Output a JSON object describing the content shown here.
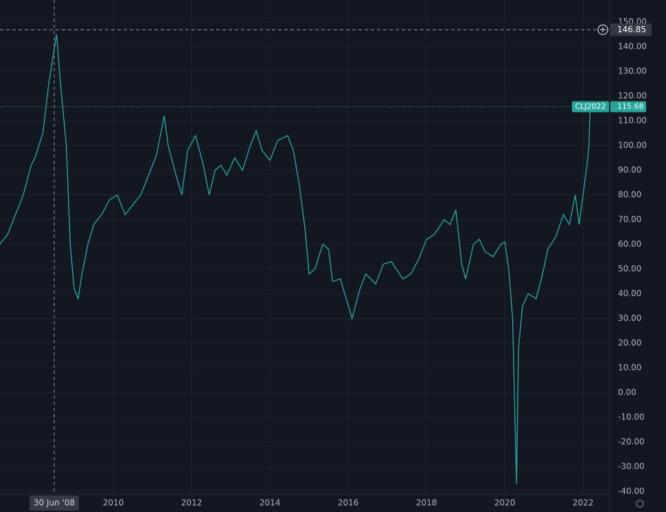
{
  "chart_data": {
    "type": "line",
    "x": [
      2007.1,
      2007.3,
      2007.5,
      2007.7,
      2007.9,
      2008.0,
      2008.2,
      2008.35,
      2008.5,
      2008.55,
      2008.65,
      2008.8,
      2008.9,
      2009.0,
      2009.1,
      2009.2,
      2009.35,
      2009.5,
      2009.7,
      2009.9,
      2010.1,
      2010.3,
      2010.5,
      2010.7,
      2010.9,
      2011.1,
      2011.3,
      2011.4,
      2011.6,
      2011.75,
      2011.9,
      2012.1,
      2012.3,
      2012.45,
      2012.6,
      2012.75,
      2012.9,
      2013.1,
      2013.3,
      2013.5,
      2013.65,
      2013.8,
      2014.0,
      2014.2,
      2014.45,
      2014.6,
      2014.75,
      2014.9,
      2015.0,
      2015.15,
      2015.35,
      2015.5,
      2015.6,
      2015.8,
      2015.95,
      2016.1,
      2016.3,
      2016.45,
      2016.7,
      2016.9,
      2017.1,
      2017.4,
      2017.6,
      2017.8,
      2018.0,
      2018.2,
      2018.45,
      2018.6,
      2018.75,
      2018.9,
      2019.0,
      2019.2,
      2019.35,
      2019.5,
      2019.7,
      2019.9,
      2020.0,
      2020.1,
      2020.2,
      2020.3,
      2020.35,
      2020.45,
      2020.6,
      2020.8,
      2020.95,
      2021.1,
      2021.3,
      2021.5,
      2021.65,
      2021.8,
      2021.9,
      2022.0,
      2022.1,
      2022.15,
      2022.18
    ],
    "series": [
      {
        "name": "CLJ2022",
        "color": "#26a69a",
        "values": [
          60,
          64,
          72,
          80,
          92,
          95,
          105,
          125,
          140,
          145,
          125,
          100,
          60,
          42,
          38,
          48,
          60,
          68,
          72,
          78,
          80,
          72,
          76,
          80,
          88,
          96,
          112,
          100,
          88,
          80,
          98,
          104,
          92,
          80,
          90,
          92,
          88,
          95,
          90,
          100,
          106,
          98,
          94,
          102,
          104,
          98,
          84,
          66,
          48,
          50,
          60,
          58,
          45,
          46,
          38,
          30,
          42,
          48,
          44,
          52,
          53,
          46,
          48,
          54,
          62,
          64,
          70,
          68,
          74,
          52,
          46,
          60,
          62,
          57,
          55,
          60,
          61,
          50,
          30,
          -37,
          18,
          35,
          40,
          38,
          47,
          58,
          63,
          72,
          68,
          80,
          68,
          80,
          92,
          100,
          115.68
        ]
      }
    ],
    "xlim": [
      2007.105,
      2022.68
    ],
    "xticks": [
      2010,
      2012,
      2014,
      2016,
      2018,
      2020,
      2022
    ],
    "ylim": [
      -40,
      150
    ],
    "yticks": [
      {
        "value": -40,
        "label": "-40.00"
      },
      {
        "value": -30,
        "label": "-30.00"
      },
      {
        "value": -20,
        "label": "-20.00"
      },
      {
        "value": -10,
        "label": "-10.00"
      },
      {
        "value": 0,
        "label": "0.00"
      },
      {
        "value": 10,
        "label": "10.00"
      },
      {
        "value": 20,
        "label": "20.00"
      },
      {
        "value": 30,
        "label": "30.00"
      },
      {
        "value": 40,
        "label": "40.00"
      },
      {
        "value": 50,
        "label": "50.00"
      },
      {
        "value": 60,
        "label": "60.00"
      },
      {
        "value": 70,
        "label": "70.00"
      },
      {
        "value": 80,
        "label": "80.00"
      },
      {
        "value": 90,
        "label": "90.00"
      },
      {
        "value": 100,
        "label": "100.00"
      },
      {
        "value": 110,
        "label": "110.00"
      },
      {
        "value": 120,
        "label": "120.00"
      },
      {
        "value": 130,
        "label": "130.00"
      },
      {
        "value": 140,
        "label": "140.00"
      },
      {
        "value": 150,
        "label": "150.00"
      }
    ],
    "grid": true,
    "crosshair": {
      "x": 2008.49,
      "label": "30 Jun '08",
      "y": 146.85
    }
  }
}
